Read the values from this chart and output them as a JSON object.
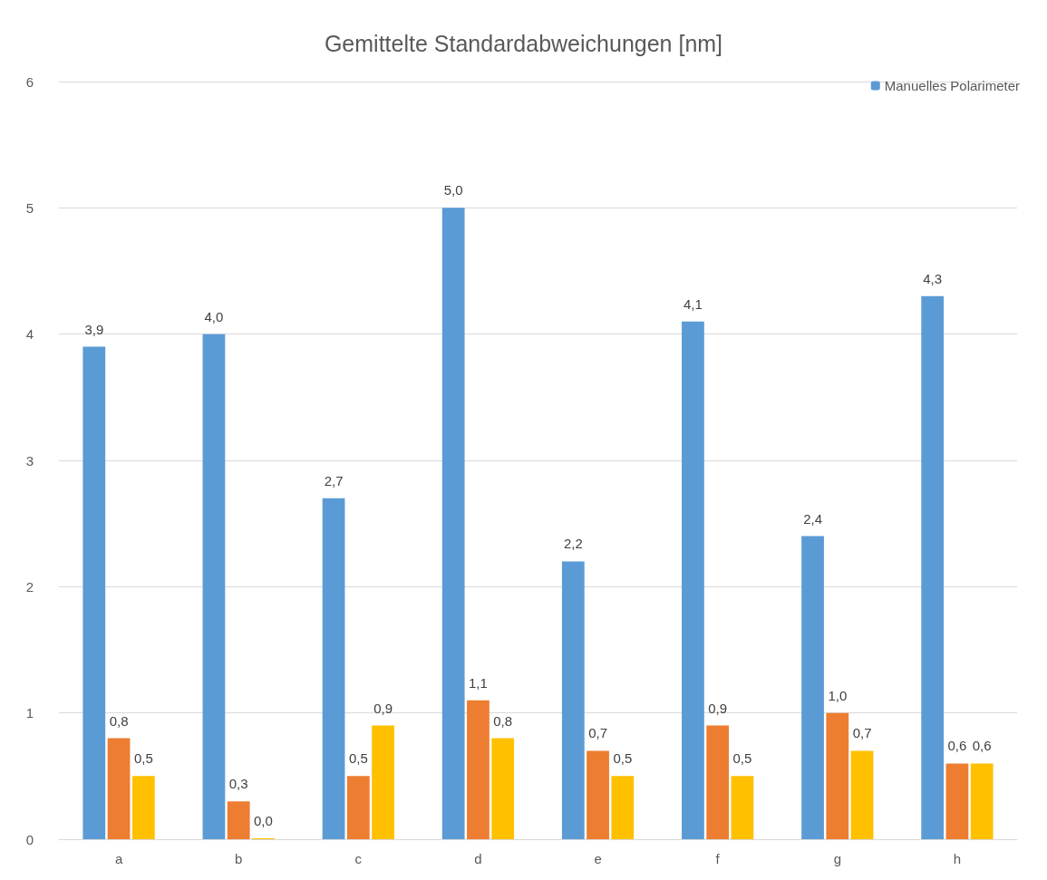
{
  "chart_data": {
    "type": "bar",
    "title": "Gemittelte Standardabweichungen [nm]",
    "categories": [
      "a",
      "b",
      "c",
      "d",
      "e",
      "f",
      "g",
      "h"
    ],
    "series": [
      {
        "name": "Manuelles Polarimeter",
        "color": "#5b9bd5",
        "values": [
          3.9,
          4.0,
          2.7,
          5.0,
          2.2,
          4.1,
          2.4,
          4.3
        ],
        "value_labels": [
          "3,9",
          "4,0",
          "2,7",
          "5,0",
          "2,2",
          "4,1",
          "2,4",
          "4,3"
        ]
      },
      {
        "color": "#ed7d31",
        "values": [
          0.8,
          0.3,
          0.5,
          1.1,
          0.7,
          0.9,
          1.0,
          0.6
        ],
        "value_labels": [
          "0,8",
          "0,3",
          "0,5",
          "1,1",
          "0,7",
          "0,9",
          "1,0",
          "0,6"
        ]
      },
      {
        "color": "#ffc000",
        "values": [
          0.5,
          0.0,
          0.9,
          0.8,
          0.5,
          0.5,
          0.7,
          0.6
        ],
        "value_labels": [
          "0,5",
          "0,0",
          "0,9",
          "0,8",
          "0,5",
          "0,5",
          "0,7",
          "0,6"
        ]
      }
    ],
    "ylim": [
      0,
      6
    ],
    "yticks": [
      0,
      1,
      2,
      3,
      4,
      5,
      6
    ],
    "grid": "y",
    "legend": "top right"
  }
}
